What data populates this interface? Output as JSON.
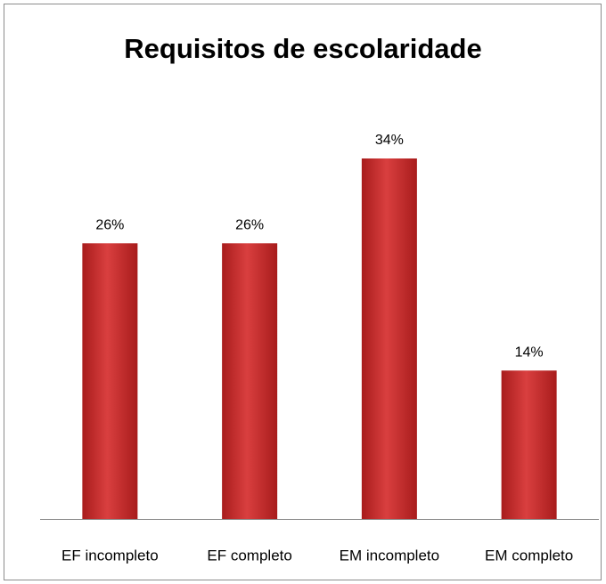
{
  "chart_data": {
    "type": "bar",
    "title": "Requisitos de escolaridade",
    "categories": [
      "EF incompleto",
      "EF completo",
      "EM incompleto",
      "EM completo"
    ],
    "values": [
      26,
      26,
      34,
      14
    ],
    "value_labels": [
      "26%",
      "26%",
      "34%",
      "14%"
    ],
    "color": "#d93f3f"
  }
}
